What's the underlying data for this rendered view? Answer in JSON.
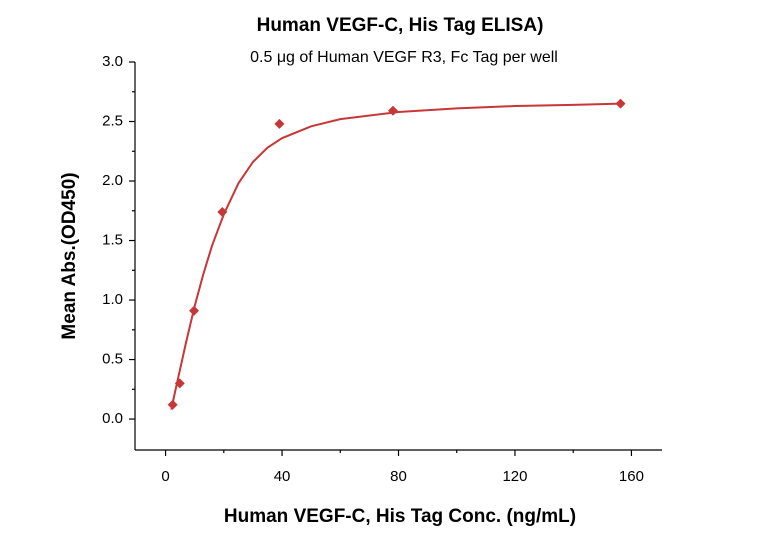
{
  "chart_data": {
    "type": "scatter",
    "title": "Human VEGF-C, His Tag ELISA)",
    "subtitle": "0.5 μg of Human VEGF R3, Fc Tag per well",
    "x_label": "Human VEGF-C, His Tag Conc. (ng/mL)",
    "y_label": "Mean Abs.(OD450)",
    "x": [
      2.44,
      4.88,
      9.77,
      19.5,
      39.1,
      78.1,
      156.25
    ],
    "values": [
      0.12,
      0.3,
      0.91,
      1.74,
      2.48,
      2.59,
      2.65
    ],
    "color": "#c83737",
    "fit": {
      "x": [
        2,
        3,
        4,
        5,
        7,
        10,
        13,
        16,
        20,
        25,
        30,
        35,
        40,
        50,
        60,
        80,
        100,
        120,
        140,
        156.25
      ],
      "values": [
        0.08,
        0.2,
        0.31,
        0.42,
        0.64,
        0.95,
        1.22,
        1.46,
        1.72,
        1.98,
        2.16,
        2.28,
        2.36,
        2.46,
        2.52,
        2.58,
        2.61,
        2.63,
        2.64,
        2.65
      ]
    },
    "xlim": [
      -10.5,
      170.5
    ],
    "ylim": [
      -0.26,
      3.0
    ],
    "xticks": [
      0,
      40,
      80,
      120,
      160
    ],
    "xminorticks": [
      20,
      60,
      100,
      140
    ],
    "yticks": [
      {
        "value": 0,
        "label": "0.0"
      },
      0.5,
      {
        "value": 1,
        "label": "1.0"
      },
      1.5,
      {
        "value": 2,
        "label": "2.0"
      },
      2.5,
      {
        "value": 3,
        "label": "3.0"
      }
    ],
    "yminorticks": [
      0.25,
      0.75,
      1.25,
      1.75,
      2.25,
      2.75
    ]
  }
}
